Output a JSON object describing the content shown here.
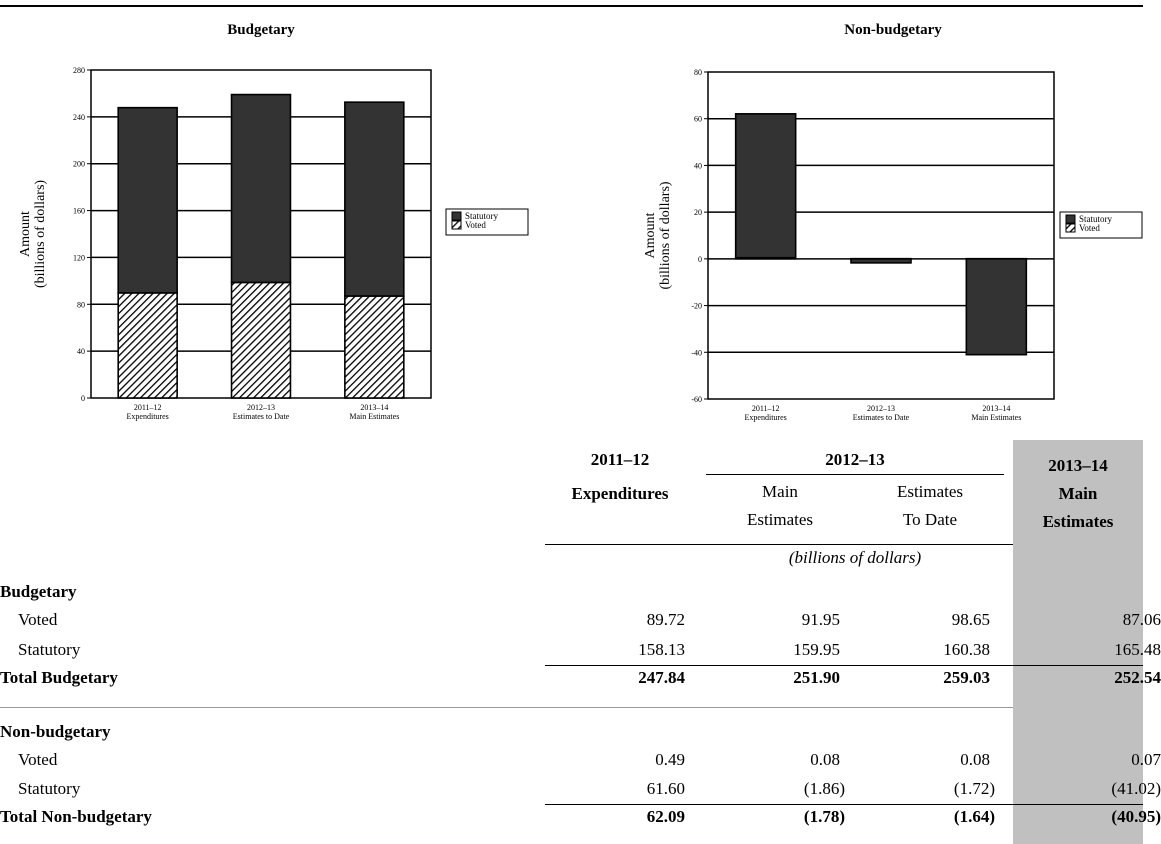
{
  "chart_data": [
    {
      "type": "bar",
      "stacked": true,
      "title": "Budgetary",
      "ylabel": "Amount (billions of dollars)",
      "ylim": [
        0,
        280
      ],
      "yticks": [
        0,
        40,
        80,
        120,
        160,
        200,
        240,
        280
      ],
      "categories": [
        "2011–12 Expenditures",
        "2012–13 Estimates to Date",
        "2013–14 Main Estimates"
      ],
      "series": [
        {
          "name": "Voted",
          "values": [
            89.72,
            98.65,
            87.06
          ],
          "pattern": "hatch"
        },
        {
          "name": "Statutory",
          "values": [
            158.13,
            160.38,
            165.48
          ],
          "color": "#333333"
        }
      ],
      "legend": "right",
      "grid": true
    },
    {
      "type": "bar",
      "stacked": true,
      "title": "Non-budgetary",
      "ylabel": "Amount (billions of dollars)",
      "ylim": [
        -60,
        80
      ],
      "yticks": [
        -60,
        -40,
        -20,
        0,
        20,
        40,
        60,
        80
      ],
      "categories": [
        "2011–12 Expenditures",
        "2012–13 Estimates to Date",
        "2013–14 Main Estimates"
      ],
      "series": [
        {
          "name": "Voted",
          "values": [
            0.49,
            0.08,
            0.07
          ],
          "pattern": "hatch"
        },
        {
          "name": "Statutory",
          "values": [
            61.6,
            -1.72,
            -41.02
          ],
          "color": "#333333"
        }
      ],
      "legend": "right",
      "grid": true
    }
  ],
  "table": {
    "col1_year": "2011–12",
    "col1_label": "Expenditures",
    "group_year": "2012–13",
    "col2_l1": "Main",
    "col2_l2": "Estimates",
    "col3_l1": "Estimates",
    "col3_l2": "To Date",
    "col4_year": "2013–14",
    "col4_l1": "Main",
    "col4_l2": "Estimates",
    "units": "(billions of dollars)",
    "budgetary_heading": "Budgetary",
    "b_voted": {
      "label": "Voted",
      "v1": "89.72",
      "v2": "91.95",
      "v3": "98.65",
      "v4": "87.06"
    },
    "b_statutory": {
      "label": "Statutory",
      "v1": "158.13",
      "v2": "159.95",
      "v3": "160.38",
      "v4": "165.48"
    },
    "b_total": {
      "label": "Total Budgetary",
      "v1": "247.84",
      "v2": "251.90",
      "v3": "259.03",
      "v4": "252.54"
    },
    "nonbudgetary_heading": "Non-budgetary",
    "n_voted": {
      "label": "Voted",
      "v1": "0.49",
      "v2": "0.08",
      "v3": "0.08",
      "v4": "0.07"
    },
    "n_statutory": {
      "label": "Statutory",
      "v1": "61.60",
      "v2": "(1.86)",
      "v3": "(1.72)",
      "v4": "(41.02)"
    },
    "n_total": {
      "label": "Total Non-budgetary",
      "v1": "62.09",
      "v2": "(1.78)",
      "v3": "(1.64)",
      "v4": "(40.95)"
    }
  }
}
